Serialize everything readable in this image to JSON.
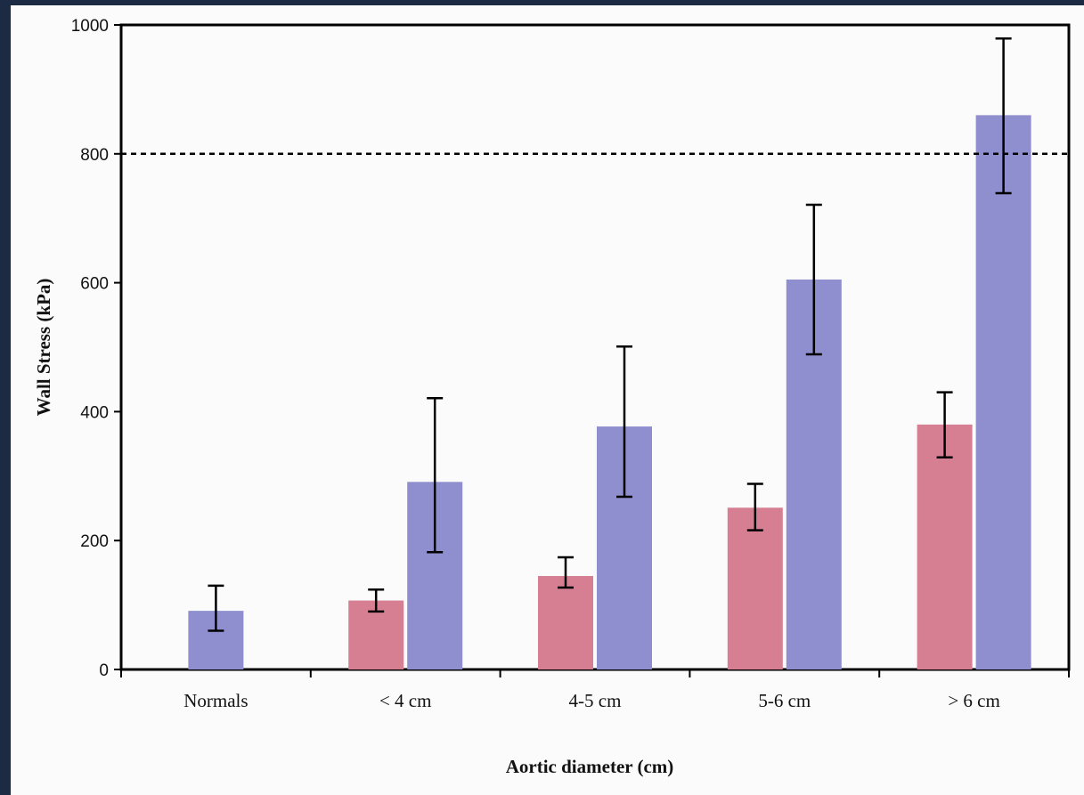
{
  "chart_data": {
    "type": "bar",
    "title": "",
    "xlabel": "Aortic diameter (cm)",
    "ylabel": "Wall Stress (kPa)",
    "ylim": [
      0,
      1000
    ],
    "yticks": [
      "0",
      "200",
      "400",
      "600",
      "800",
      "1000"
    ],
    "categories": [
      "Normals",
      "< 4 cm",
      "4-5 cm",
      "5-6 cm",
      "> 6 cm"
    ],
    "series": [
      {
        "color": "#d67f92",
        "values": [
          null,
          107,
          145,
          251,
          380
        ],
        "err_low": [
          null,
          90,
          127,
          216,
          329
        ],
        "err_high": [
          null,
          124,
          174,
          288,
          430
        ]
      },
      {
        "color": "#8f8fcf",
        "values": [
          91,
          291,
          377,
          605,
          860
        ],
        "err_low": [
          60,
          182,
          268,
          489,
          739
        ],
        "err_high": [
          130,
          421,
          501,
          721,
          979
        ]
      }
    ],
    "reference_line": {
      "y": 800,
      "style": "dashed"
    },
    "grid": false,
    "legend": "none"
  }
}
